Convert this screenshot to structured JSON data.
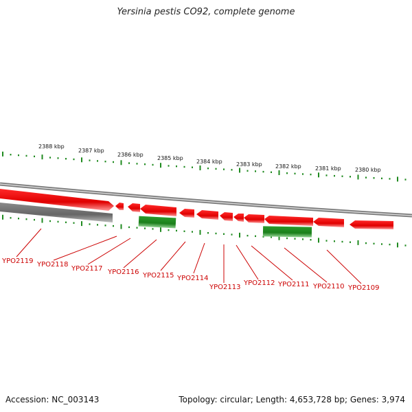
{
  "title": "Yersinia pestis CO92, complete genome",
  "footer": {
    "accession": "Accession: NC_003143",
    "summary": "Topology: circular; Length: 4,653,728 bp; Genes: 3,974"
  },
  "colors": {
    "forward_gene": "#e00000",
    "reverse_gene": "#1f8a1f",
    "other_gene": "#6e6e6e",
    "backbone": "#888888",
    "tick": "#1f8a1f",
    "label": "#cc0000"
  },
  "scale_labels": [
    "2388 kbp",
    "2387 kbp",
    "2386 kbp",
    "2385 kbp",
    "2384 kbp",
    "2383 kbp",
    "2382 kbp",
    "2381 kbp",
    "2380 kbp"
  ],
  "gene_labels": [
    "YPO2119",
    "YPO2118",
    "YPO2117",
    "YPO2116",
    "YPO2115",
    "YPO2114",
    "YPO2113",
    "YPO2112",
    "YPO2111",
    "YPO2110",
    "YPO2109"
  ]
}
